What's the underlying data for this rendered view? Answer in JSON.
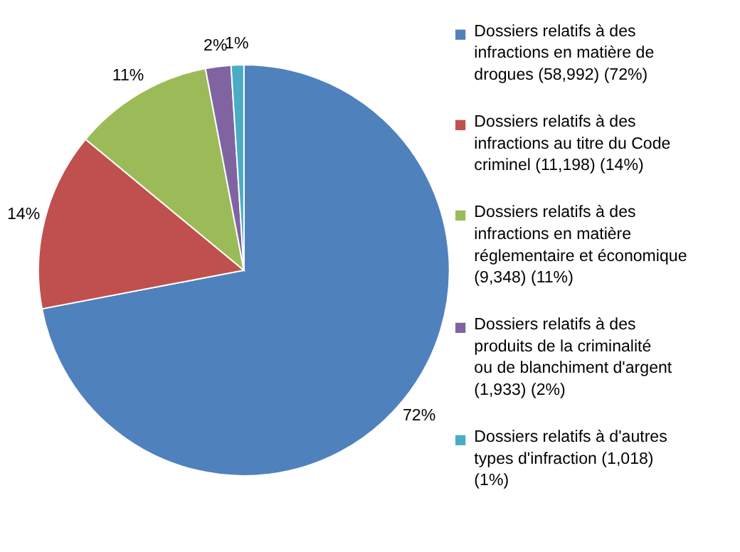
{
  "chart_data": {
    "type": "pie",
    "categories": [
      "Dossiers relatifs à des infractions en matière de drogues (58,992) (72%)",
      "Dossiers relatifs à des infractions au titre du Code criminel (11,198) (14%)",
      "Dossiers relatifs à des infractions en matière réglementaire et économique (9,348) (11%)",
      "Dossiers relatifs à des produits de la criminalité ou de blanchiment d'argent (1,933) (2%)",
      "Dossiers relatifs à d'autres types d'infraction (1,018) (1%)"
    ],
    "values": [
      72,
      14,
      11,
      2,
      1
    ],
    "colors": [
      "#4f81bd",
      "#c0504d",
      "#9bbb59",
      "#8064a2",
      "#4bacc6"
    ],
    "value_labels": [
      "72%",
      "14%",
      "11%",
      "2%",
      "1%"
    ],
    "legend": "right"
  }
}
